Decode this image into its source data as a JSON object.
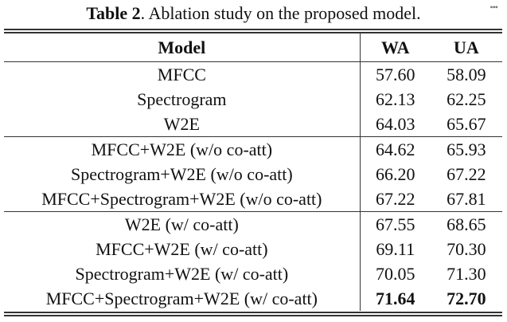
{
  "caption": {
    "label": "Table 2",
    "text": ". Ablation study on the proposed model."
  },
  "more_icon": "ellipsis-icon",
  "table": {
    "headers": [
      "Model",
      "WA",
      "UA"
    ],
    "rows": [
      {
        "model": "MFCC",
        "wa": "57.60",
        "ua": "58.09"
      },
      {
        "model": "Spectrogram",
        "wa": "62.13",
        "ua": "62.25"
      },
      {
        "model": "W2E",
        "wa": "64.03",
        "ua": "65.67"
      },
      {
        "model": "MFCC+W2E (w/o co-att)",
        "wa": "64.62",
        "ua": "65.93"
      },
      {
        "model": "Spectrogram+W2E (w/o co-att)",
        "wa": "66.20",
        "ua": "67.22"
      },
      {
        "model": "MFCC+Spectrogram+W2E (w/o co-att)",
        "wa": "67.22",
        "ua": "67.81"
      },
      {
        "model": "W2E (w/ co-att)",
        "wa": "67.55",
        "ua": "68.65"
      },
      {
        "model": "MFCC+W2E (w/ co-att)",
        "wa": "69.11",
        "ua": "70.30"
      },
      {
        "model": "Spectrogram+W2E (w/ co-att)",
        "wa": "70.05",
        "ua": "71.30"
      },
      {
        "model": "MFCC+Spectrogram+W2E (w/ co-att)",
        "wa": "71.64",
        "ua": "72.70"
      }
    ]
  }
}
